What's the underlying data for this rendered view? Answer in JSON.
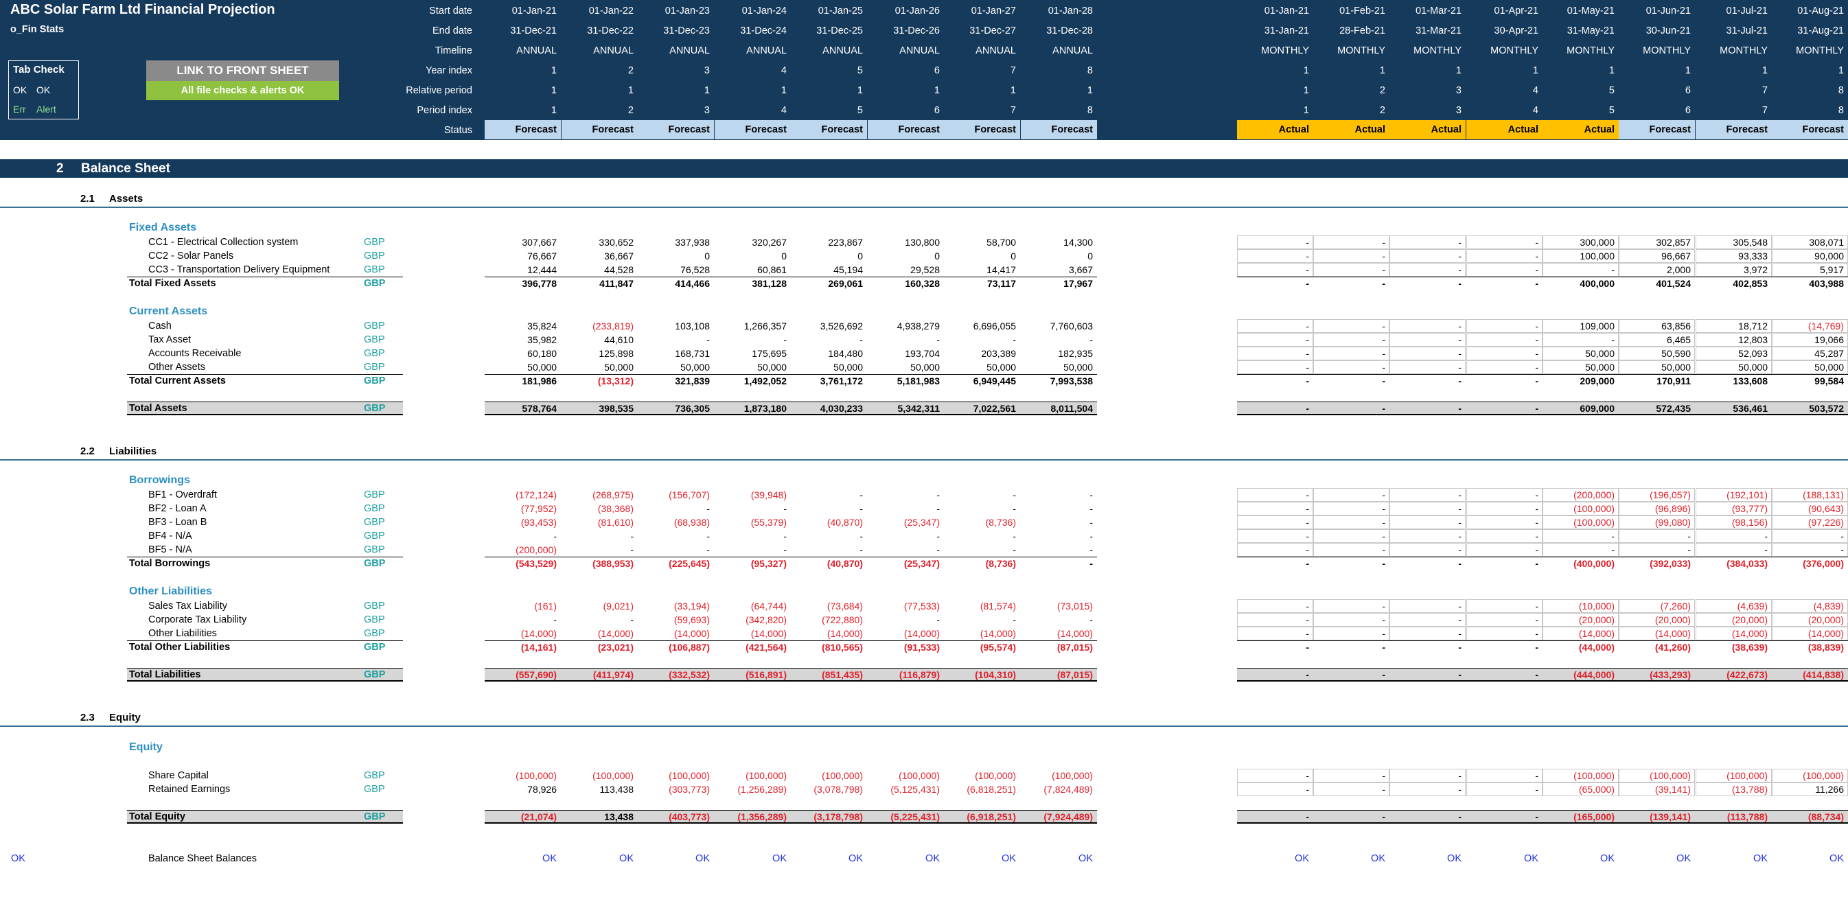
{
  "title": "ABC Solar Farm Ltd Financial Projection",
  "sheet_name": "o_Fin Stats",
  "tab_check": {
    "title": "Tab Check",
    "ok1": "OK",
    "ok2": "OK",
    "err": "Err",
    "alert": "Alert"
  },
  "link_button": "LINK TO FRONT SHEET",
  "checks_status": "All file checks & alerts OK",
  "header_labels": [
    "Start date",
    "End date",
    "Timeline",
    "Year index",
    "Relative period",
    "Period index",
    "Status"
  ],
  "annual": {
    "start": [
      "01-Jan-21",
      "01-Jan-22",
      "01-Jan-23",
      "01-Jan-24",
      "01-Jan-25",
      "01-Jan-26",
      "01-Jan-27",
      "01-Jan-28"
    ],
    "end": [
      "31-Dec-21",
      "31-Dec-22",
      "31-Dec-23",
      "31-Dec-24",
      "31-Dec-25",
      "31-Dec-26",
      "31-Dec-27",
      "31-Dec-28"
    ],
    "timeline": [
      "ANNUAL",
      "ANNUAL",
      "ANNUAL",
      "ANNUAL",
      "ANNUAL",
      "ANNUAL",
      "ANNUAL",
      "ANNUAL"
    ],
    "year_index": [
      "1",
      "2",
      "3",
      "4",
      "5",
      "6",
      "7",
      "8"
    ],
    "relative": [
      "1",
      "1",
      "1",
      "1",
      "1",
      "1",
      "1",
      "1"
    ],
    "period_index": [
      "1",
      "2",
      "3",
      "4",
      "5",
      "6",
      "7",
      "8"
    ],
    "status": [
      "Forecast",
      "Forecast",
      "Forecast",
      "Forecast",
      "Forecast",
      "Forecast",
      "Forecast",
      "Forecast"
    ]
  },
  "monthly": {
    "start": [
      "01-Jan-21",
      "01-Feb-21",
      "01-Mar-21",
      "01-Apr-21",
      "01-May-21",
      "01-Jun-21",
      "01-Jul-21",
      "01-Aug-21"
    ],
    "end": [
      "31-Jan-21",
      "28-Feb-21",
      "31-Mar-21",
      "30-Apr-21",
      "31-May-21",
      "30-Jun-21",
      "31-Jul-21",
      "31-Aug-21"
    ],
    "timeline": [
      "MONTHLY",
      "MONTHLY",
      "MONTHLY",
      "MONTHLY",
      "MONTHLY",
      "MONTHLY",
      "MONTHLY",
      "MONTHLY"
    ],
    "year_index": [
      "1",
      "1",
      "1",
      "1",
      "1",
      "1",
      "1",
      "1"
    ],
    "relative": [
      "1",
      "2",
      "3",
      "4",
      "5",
      "6",
      "7",
      "8"
    ],
    "period_index": [
      "1",
      "2",
      "3",
      "4",
      "5",
      "6",
      "7",
      "8"
    ],
    "status": [
      "Actual",
      "Actual",
      "Actual",
      "Actual",
      "Actual",
      "Forecast",
      "Forecast",
      "Forecast"
    ]
  },
  "section": {
    "num": "2",
    "title": "Balance Sheet"
  },
  "subsections": [
    {
      "num": "2.1",
      "title": "Assets"
    },
    {
      "num": "2.2",
      "title": "Liabilities"
    },
    {
      "num": "2.3",
      "title": "Equity"
    }
  ],
  "groups": [
    "Fixed Assets",
    "Current Assets",
    "Borrowings",
    "Other Liabilities",
    "Equity"
  ],
  "currency": "GBP",
  "rows": [
    {
      "label": "CC1 - Electrical Collection system",
      "annual": [
        "307,667",
        "330,652",
        "337,938",
        "320,267",
        "223,867",
        "130,800",
        "58,700",
        "14,300"
      ],
      "monthly": [
        "-",
        "-",
        "-",
        "-",
        "300,000",
        "302,857",
        "305,548",
        "308,071"
      ]
    },
    {
      "label": "CC2 - Solar Panels",
      "annual": [
        "76,667",
        "36,667",
        "0",
        "0",
        "0",
        "0",
        "0",
        "0"
      ],
      "monthly": [
        "-",
        "-",
        "-",
        "-",
        "100,000",
        "96,667",
        "93,333",
        "90,000"
      ]
    },
    {
      "label": "CC3 - Transportation Delivery Equipment",
      "annual": [
        "12,444",
        "44,528",
        "76,528",
        "60,861",
        "45,194",
        "29,528",
        "14,417",
        "3,667"
      ],
      "monthly": [
        "-",
        "-",
        "-",
        "-",
        "-",
        "2,000",
        "3,972",
        "5,917"
      ]
    },
    {
      "label": "Total Fixed Assets",
      "total": true,
      "annual": [
        "396,778",
        "411,847",
        "414,466",
        "381,128",
        "269,061",
        "160,328",
        "73,117",
        "17,967"
      ],
      "monthly": [
        "-",
        "-",
        "-",
        "-",
        "400,000",
        "401,524",
        "402,853",
        "403,988"
      ]
    },
    {
      "label": "Cash",
      "annual": [
        "35,824",
        "(233,819)",
        "103,108",
        "1,266,357",
        "3,526,692",
        "4,938,279",
        "6,696,055",
        "7,760,603"
      ],
      "monthly": [
        "-",
        "-",
        "-",
        "-",
        "109,000",
        "63,856",
        "18,712",
        "(14,769)"
      ]
    },
    {
      "label": "Tax Asset",
      "annual": [
        "35,982",
        "44,610",
        "-",
        "-",
        "-",
        "-",
        "-",
        "-"
      ],
      "monthly": [
        "-",
        "-",
        "-",
        "-",
        "-",
        "6,465",
        "12,803",
        "19,066"
      ]
    },
    {
      "label": "Accounts Receivable",
      "annual": [
        "60,180",
        "125,898",
        "168,731",
        "175,695",
        "184,480",
        "193,704",
        "203,389",
        "182,935"
      ],
      "monthly": [
        "-",
        "-",
        "-",
        "-",
        "50,000",
        "50,590",
        "52,093",
        "45,287"
      ]
    },
    {
      "label": "Other Assets",
      "annual": [
        "50,000",
        "50,000",
        "50,000",
        "50,000",
        "50,000",
        "50,000",
        "50,000",
        "50,000"
      ],
      "monthly": [
        "-",
        "-",
        "-",
        "-",
        "50,000",
        "50,000",
        "50,000",
        "50,000"
      ]
    },
    {
      "label": "Total Current Assets",
      "total": true,
      "annual": [
        "181,986",
        "(13,312)",
        "321,839",
        "1,492,052",
        "3,761,172",
        "5,181,983",
        "6,949,445",
        "7,993,538"
      ],
      "monthly": [
        "-",
        "-",
        "-",
        "-",
        "209,000",
        "170,911",
        "133,608",
        "99,584"
      ]
    },
    {
      "label": "Total Assets",
      "grand": true,
      "annual": [
        "578,764",
        "398,535",
        "736,305",
        "1,873,180",
        "4,030,233",
        "5,342,311",
        "7,022,561",
        "8,011,504"
      ],
      "monthly": [
        "-",
        "-",
        "-",
        "-",
        "609,000",
        "572,435",
        "536,461",
        "503,572"
      ]
    },
    {
      "label": "BF1 - Overdraft",
      "annual": [
        "(172,124)",
        "(268,975)",
        "(156,707)",
        "(39,948)",
        "-",
        "-",
        "-",
        "-"
      ],
      "monthly": [
        "-",
        "-",
        "-",
        "-",
        "(200,000)",
        "(196,057)",
        "(192,101)",
        "(188,131)"
      ]
    },
    {
      "label": "BF2 - Loan A",
      "annual": [
        "(77,952)",
        "(38,368)",
        "-",
        "-",
        "-",
        "-",
        "-",
        "-"
      ],
      "monthly": [
        "-",
        "-",
        "-",
        "-",
        "(100,000)",
        "(96,896)",
        "(93,777)",
        "(90,643)"
      ]
    },
    {
      "label": "BF3 - Loan B",
      "annual": [
        "(93,453)",
        "(81,610)",
        "(68,938)",
        "(55,379)",
        "(40,870)",
        "(25,347)",
        "(8,736)",
        "-"
      ],
      "monthly": [
        "-",
        "-",
        "-",
        "-",
        "(100,000)",
        "(99,080)",
        "(98,156)",
        "(97,226)"
      ]
    },
    {
      "label": "BF4 - N/A",
      "annual": [
        "-",
        "-",
        "-",
        "-",
        "-",
        "-",
        "-",
        "-"
      ],
      "monthly": [
        "-",
        "-",
        "-",
        "-",
        "-",
        "-",
        "-",
        "-"
      ]
    },
    {
      "label": "BF5 - N/A",
      "annual": [
        "(200,000)",
        "-",
        "-",
        "-",
        "-",
        "-",
        "-",
        "-"
      ],
      "monthly": [
        "-",
        "-",
        "-",
        "-",
        "-",
        "-",
        "-",
        "-"
      ]
    },
    {
      "label": "Total Borrowings",
      "total": true,
      "annual": [
        "(543,529)",
        "(388,953)",
        "(225,645)",
        "(95,327)",
        "(40,870)",
        "(25,347)",
        "(8,736)",
        "-"
      ],
      "monthly": [
        "-",
        "-",
        "-",
        "-",
        "(400,000)",
        "(392,033)",
        "(384,033)",
        "(376,000)"
      ]
    },
    {
      "label": "Sales Tax Liability",
      "annual": [
        "(161)",
        "(9,021)",
        "(33,194)",
        "(64,744)",
        "(73,684)",
        "(77,533)",
        "(81,574)",
        "(73,015)"
      ],
      "monthly": [
        "-",
        "-",
        "-",
        "-",
        "(10,000)",
        "(7,260)",
        "(4,639)",
        "(4,839)"
      ]
    },
    {
      "label": "Corporate Tax Liability",
      "annual": [
        "-",
        "-",
        "(59,693)",
        "(342,820)",
        "(722,880)",
        "-",
        "-",
        "-"
      ],
      "monthly": [
        "-",
        "-",
        "-",
        "-",
        "(20,000)",
        "(20,000)",
        "(20,000)",
        "(20,000)"
      ]
    },
    {
      "label": "Other Liabilities",
      "annual": [
        "(14,000)",
        "(14,000)",
        "(14,000)",
        "(14,000)",
        "(14,000)",
        "(14,000)",
        "(14,000)",
        "(14,000)"
      ],
      "monthly": [
        "-",
        "-",
        "-",
        "-",
        "(14,000)",
        "(14,000)",
        "(14,000)",
        "(14,000)"
      ]
    },
    {
      "label": "Total Other Liabilities",
      "total": true,
      "annual": [
        "(14,161)",
        "(23,021)",
        "(106,887)",
        "(421,564)",
        "(810,565)",
        "(91,533)",
        "(95,574)",
        "(87,015)"
      ],
      "monthly": [
        "-",
        "-",
        "-",
        "-",
        "(44,000)",
        "(41,260)",
        "(38,639)",
        "(38,839)"
      ]
    },
    {
      "label": "Total Liabilities",
      "grand": true,
      "annual": [
        "(557,690)",
        "(411,974)",
        "(332,532)",
        "(516,891)",
        "(851,435)",
        "(116,879)",
        "(104,310)",
        "(87,015)"
      ],
      "monthly": [
        "-",
        "-",
        "-",
        "-",
        "(444,000)",
        "(433,293)",
        "(422,673)",
        "(414,838)"
      ]
    },
    {
      "label": "Share Capital",
      "annual": [
        "(100,000)",
        "(100,000)",
        "(100,000)",
        "(100,000)",
        "(100,000)",
        "(100,000)",
        "(100,000)",
        "(100,000)"
      ],
      "monthly": [
        "-",
        "-",
        "-",
        "-",
        "(100,000)",
        "(100,000)",
        "(100,000)",
        "(100,000)"
      ]
    },
    {
      "label": "Retained Earnings",
      "annual": [
        "78,926",
        "113,438",
        "(303,773)",
        "(1,256,289)",
        "(3,078,798)",
        "(5,125,431)",
        "(6,818,251)",
        "(7,824,489)"
      ],
      "monthly": [
        "-",
        "-",
        "-",
        "-",
        "(65,000)",
        "(39,141)",
        "(13,788)",
        "11,266"
      ]
    },
    {
      "label": "Total Equity",
      "grand": true,
      "annual": [
        "(21,074)",
        "13,438",
        "(403,773)",
        "(1,356,289)",
        "(3,178,798)",
        "(5,225,431)",
        "(6,918,251)",
        "(7,924,489)"
      ],
      "monthly": [
        "-",
        "-",
        "-",
        "-",
        "(165,000)",
        "(139,141)",
        "(113,788)",
        "(88,734)"
      ]
    }
  ],
  "check": {
    "status": "OK",
    "label": "Balance Sheet Balances",
    "annual": [
      "OK",
      "OK",
      "OK",
      "OK",
      "OK",
      "OK",
      "OK",
      "OK"
    ],
    "monthly": [
      "OK",
      "OK",
      "OK",
      "OK",
      "OK",
      "OK",
      "OK",
      "OK"
    ]
  }
}
